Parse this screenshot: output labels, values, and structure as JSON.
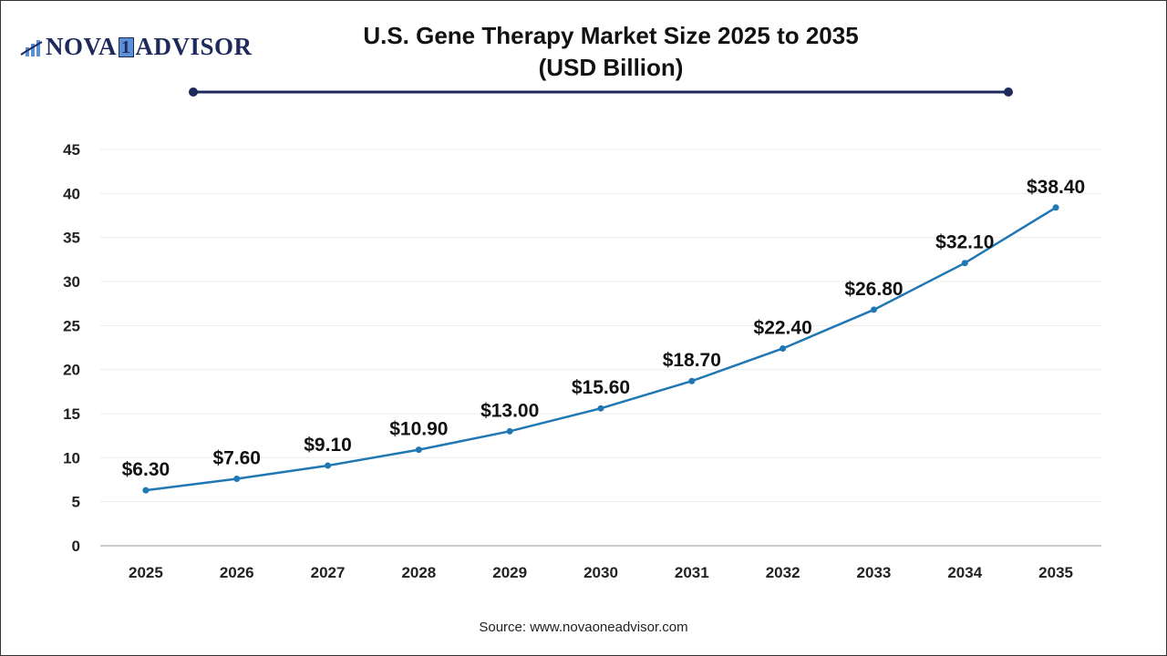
{
  "logo": {
    "text_left": "NOVA",
    "text_one": "1",
    "text_right": "ADVISOR"
  },
  "chart_data": {
    "type": "line",
    "title": "U.S. Gene Therapy Market Size 2025 to 2035",
    "subtitle": "(USD Billion)",
    "categories": [
      "2025",
      "2026",
      "2027",
      "2028",
      "2029",
      "2030",
      "2031",
      "2032",
      "2033",
      "2034",
      "2035"
    ],
    "series": [
      {
        "values": [
          6.3,
          7.6,
          9.1,
          10.9,
          13.0,
          15.6,
          18.7,
          22.4,
          26.8,
          32.1,
          38.4
        ],
        "color": "#1f77b4"
      }
    ],
    "data_labels": [
      "$6.30",
      "$7.60",
      "$9.10",
      "$10.90",
      "$13.00",
      "$15.60",
      "$18.70",
      "$22.40",
      "$26.80",
      "$32.10",
      "$38.40"
    ],
    "yticks": [
      0,
      5,
      10,
      15,
      20,
      25,
      30,
      35,
      40,
      45
    ],
    "ylim": [
      0,
      45
    ],
    "grid": true,
    "xlabel": "",
    "ylabel": ""
  },
  "source": "Source: www.novaoneadvisor.com",
  "colors": {
    "accent": "#1f2a5c",
    "line": "#1f77b4"
  }
}
